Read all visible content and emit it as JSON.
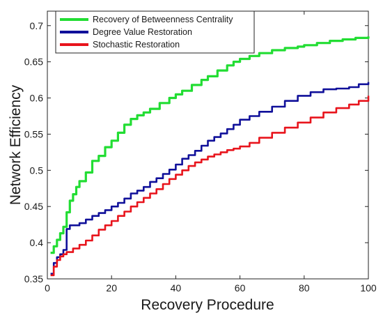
{
  "chart_data": {
    "type": "line",
    "xlabel": "Recovery Procedure",
    "ylabel": "Network Efficiency",
    "xlim": [
      0,
      100
    ],
    "ylim": [
      0.35,
      0.72
    ],
    "xticks": [
      "0",
      "20",
      "40",
      "60",
      "80",
      "100"
    ],
    "yticks": [
      "0.35",
      "0.4",
      "0.45",
      "0.5",
      "0.55",
      "0.6",
      "0.65",
      "0.7"
    ],
    "grid": false,
    "legend_position": "top-left",
    "series": [
      {
        "name": "Recovery of Betweenness Centrality",
        "color": "#22dd33",
        "x": [
          1,
          2,
          3,
          4,
          5,
          6,
          7,
          8,
          9,
          10,
          12,
          14,
          16,
          18,
          20,
          22,
          24,
          26,
          28,
          30,
          32,
          35,
          38,
          40,
          42,
          45,
          48,
          50,
          53,
          56,
          58,
          60,
          63,
          66,
          70,
          74,
          78,
          80,
          84,
          88,
          92,
          96,
          100
        ],
        "y": [
          0.386,
          0.395,
          0.404,
          0.413,
          0.422,
          0.442,
          0.458,
          0.467,
          0.477,
          0.485,
          0.497,
          0.513,
          0.52,
          0.532,
          0.541,
          0.552,
          0.563,
          0.571,
          0.576,
          0.58,
          0.585,
          0.593,
          0.6,
          0.605,
          0.61,
          0.618,
          0.625,
          0.63,
          0.638,
          0.645,
          0.65,
          0.654,
          0.658,
          0.662,
          0.666,
          0.669,
          0.671,
          0.673,
          0.676,
          0.679,
          0.681,
          0.683,
          0.685
        ]
      },
      {
        "name": "Degree Value Restoration",
        "color": "#10109a",
        "x": [
          1,
          2,
          3,
          4,
          5,
          6,
          7,
          10,
          12,
          14,
          16,
          18,
          20,
          22,
          24,
          26,
          28,
          30,
          32,
          34,
          36,
          38,
          40,
          42,
          44,
          46,
          48,
          50,
          52,
          54,
          56,
          58,
          60,
          63,
          66,
          70,
          74,
          78,
          82,
          86,
          90,
          94,
          97,
          100
        ],
        "y": [
          0.357,
          0.372,
          0.38,
          0.384,
          0.39,
          0.419,
          0.424,
          0.427,
          0.432,
          0.437,
          0.441,
          0.445,
          0.45,
          0.455,
          0.461,
          0.468,
          0.472,
          0.477,
          0.484,
          0.489,
          0.495,
          0.501,
          0.508,
          0.516,
          0.521,
          0.527,
          0.534,
          0.541,
          0.546,
          0.551,
          0.557,
          0.563,
          0.57,
          0.575,
          0.581,
          0.588,
          0.596,
          0.603,
          0.608,
          0.612,
          0.613,
          0.615,
          0.619,
          0.622
        ]
      },
      {
        "name": "Stochastic Restoration",
        "color": "#e8141c",
        "x": [
          1,
          2,
          3,
          4,
          5,
          6,
          8,
          10,
          12,
          14,
          16,
          18,
          20,
          22,
          24,
          26,
          28,
          30,
          32,
          34,
          36,
          38,
          40,
          42,
          44,
          46,
          48,
          50,
          52,
          54,
          56,
          58,
          60,
          63,
          66,
          70,
          74,
          78,
          82,
          86,
          90,
          94,
          97,
          100
        ],
        "y": [
          0.355,
          0.367,
          0.376,
          0.381,
          0.384,
          0.387,
          0.392,
          0.397,
          0.403,
          0.41,
          0.418,
          0.424,
          0.43,
          0.437,
          0.443,
          0.45,
          0.456,
          0.462,
          0.468,
          0.474,
          0.481,
          0.488,
          0.494,
          0.5,
          0.506,
          0.511,
          0.515,
          0.519,
          0.522,
          0.525,
          0.528,
          0.53,
          0.533,
          0.538,
          0.545,
          0.552,
          0.559,
          0.566,
          0.573,
          0.58,
          0.586,
          0.591,
          0.596,
          0.603
        ]
      }
    ]
  }
}
